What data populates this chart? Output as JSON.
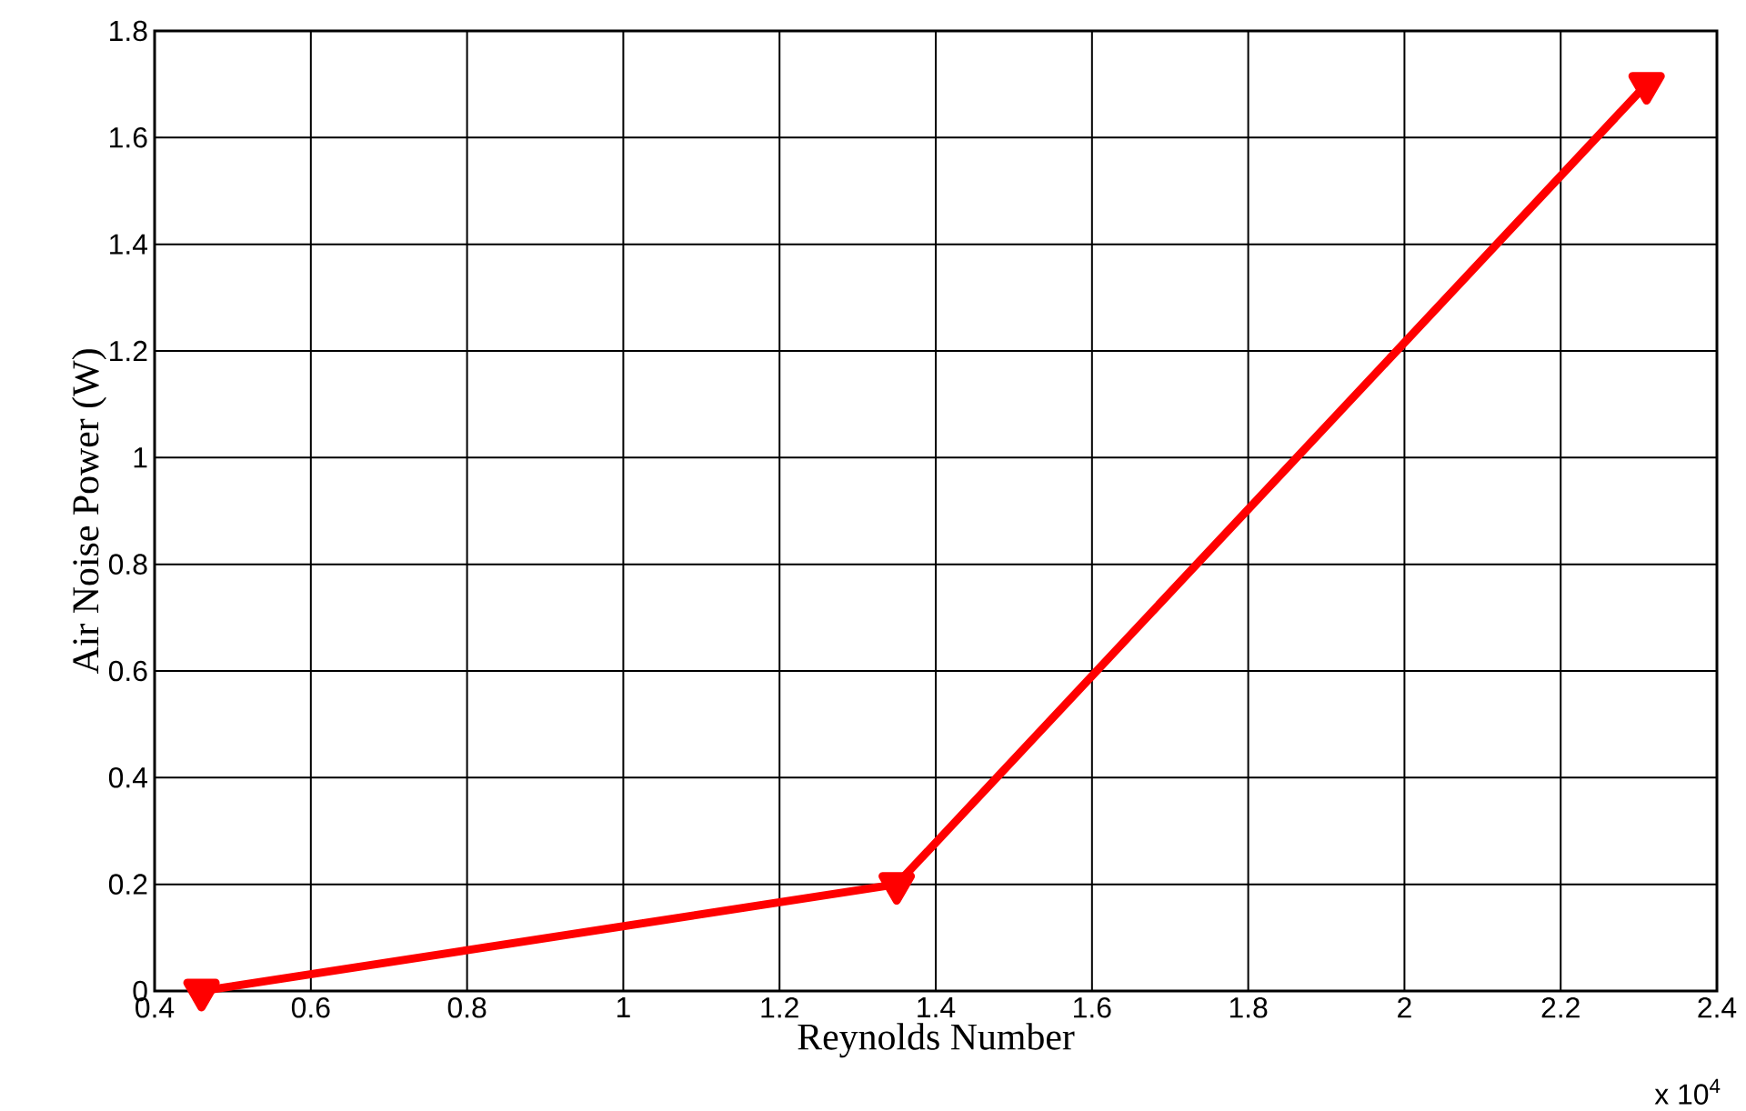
{
  "chart_data": {
    "type": "line",
    "xlabel": "Reynolds Number",
    "ylabel": "Air Noise Power (W)",
    "x": [
      0.46,
      1.35,
      2.31
    ],
    "series": [
      {
        "color": "#ff0000",
        "values": [
          0.0,
          0.2,
          1.7
        ]
      }
    ],
    "xlim": [
      0.4,
      2.4
    ],
    "xticks": [
      0.4,
      0.6,
      0.8,
      1,
      1.2,
      1.4,
      1.6,
      1.8,
      2,
      2.2,
      2.4
    ],
    "ylim": [
      0,
      1.8
    ],
    "yticks": [
      0,
      0.2,
      0.4,
      0.6,
      0.8,
      1,
      1.2,
      1.4,
      1.6,
      1.8
    ],
    "annotations": [
      "x 10$^{4}$"
    ],
    "grid": true,
    "marker": "triangle",
    "line_style": "solid"
  }
}
